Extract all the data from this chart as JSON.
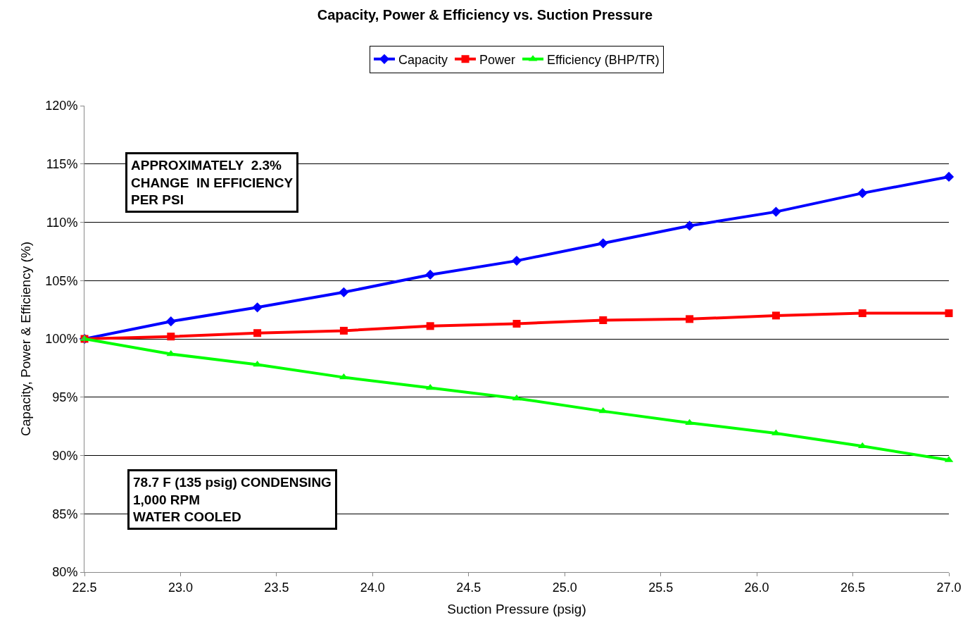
{
  "chart_data": {
    "type": "line",
    "title": "Capacity, Power & Efficiency vs. Suction Pressure",
    "xlabel": "Suction Pressure (psig)",
    "ylabel": "Capacity, Power & Efficiency (%)",
    "x": [
      22.5,
      22.95,
      23.4,
      23.85,
      24.3,
      24.75,
      25.2,
      25.65,
      26.1,
      26.55,
      27.0
    ],
    "series": [
      {
        "name": "Capacity",
        "color": "#0000ff",
        "marker": "diamond",
        "values": [
          100,
          101.5,
          102.7,
          104.0,
          105.5,
          106.7,
          108.2,
          109.7,
          110.9,
          112.5,
          113.9
        ]
      },
      {
        "name": "Power",
        "color": "#ff0000",
        "marker": "square",
        "values": [
          100,
          100.2,
          100.5,
          100.7,
          101.1,
          101.3,
          101.6,
          101.7,
          102.0,
          102.2,
          102.2
        ]
      },
      {
        "name": "Efficiency (BHP/TR)",
        "color": "#00ff00",
        "marker": "triangle",
        "values": [
          100,
          98.7,
          97.8,
          96.7,
          95.8,
          94.9,
          93.8,
          92.8,
          91.9,
          90.8,
          89.6
        ]
      }
    ],
    "xlim": [
      22.5,
      27.0
    ],
    "xticks": [
      {
        "value": 22.5,
        "label": "22.5"
      },
      {
        "value": 23,
        "label": "23.0"
      },
      {
        "value": 23.5,
        "label": "23.5"
      },
      {
        "value": 24,
        "label": "24.0"
      },
      {
        "value": 24.5,
        "label": "24.5"
      },
      {
        "value": 25,
        "label": "25.0"
      },
      {
        "value": 25.5,
        "label": "25.5"
      },
      {
        "value": 26,
        "label": "26.0"
      },
      {
        "value": 26.5,
        "label": "26.5"
      },
      {
        "value": 27,
        "label": "27.0"
      }
    ],
    "ylim": [
      80,
      120
    ],
    "yticks": [
      {
        "value": 80,
        "label": "80%"
      },
      {
        "value": 85,
        "label": "85%"
      },
      {
        "value": 90,
        "label": "90%"
      },
      {
        "value": 95,
        "label": "95%"
      },
      {
        "value": 100,
        "label": "100%"
      },
      {
        "value": 105,
        "label": "105%"
      },
      {
        "value": 110,
        "label": "110%"
      },
      {
        "value": 115,
        "label": "115%"
      },
      {
        "value": 120,
        "label": "120%"
      }
    ],
    "grid": "y",
    "legend": "top",
    "line_style": "solid",
    "annotations": [
      "APPROXIMATELY  2.3%\nCHANGE  IN EFFICIENCY\nPER PSI",
      "78.7 F (135 psig) CONDENSING\n1,000 RPM\nWATER COOLED"
    ]
  }
}
